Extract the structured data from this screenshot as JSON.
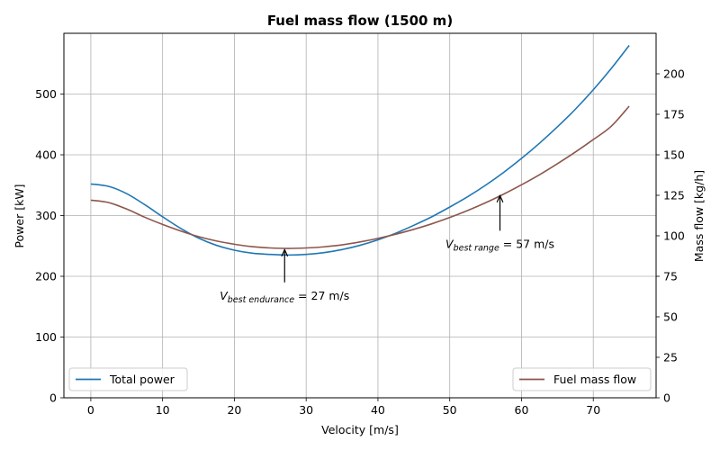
{
  "chart_data": {
    "type": "line",
    "title": "Fuel mass flow (1500 m)",
    "xlabel": "Velocity [m/s]",
    "ylabel_left": "Power [kW]",
    "ylabel_right": "Mass flow [kg/h]",
    "xlim": [
      -3.75,
      78.75
    ],
    "ylim_left": [
      0,
      600
    ],
    "ylim_right": [
      0,
      225
    ],
    "x_ticks": [
      0,
      10,
      20,
      30,
      40,
      50,
      60,
      70
    ],
    "y_ticks_left": [
      0,
      100,
      200,
      300,
      400,
      500
    ],
    "y_ticks_right": [
      0,
      25,
      50,
      75,
      100,
      125,
      150,
      175,
      200
    ],
    "grid": true,
    "series": [
      {
        "name": "Total power",
        "axis": "left",
        "color": "#1f77b4",
        "x": [
          0,
          2.5,
          5,
          7.5,
          10,
          12.5,
          15,
          17.5,
          20,
          22.5,
          25,
          27.5,
          30,
          32.5,
          35,
          37.5,
          40,
          42.5,
          45,
          47.5,
          50,
          52.5,
          55,
          57.5,
          60,
          62.5,
          65,
          67.5,
          70,
          72.5,
          75
        ],
        "values": [
          352,
          348,
          336,
          318,
          298,
          279,
          263,
          251,
          243,
          238,
          236,
          235,
          236,
          239,
          244,
          251,
          260,
          271,
          284,
          298,
          314,
          331,
          350,
          371,
          394,
          419,
          446,
          475,
          507,
          542,
          580
        ]
      },
      {
        "name": "Fuel mass flow",
        "axis": "right",
        "color": "#8c564b",
        "x": [
          0,
          2.5,
          5,
          7.5,
          10,
          12.5,
          15,
          17.5,
          20,
          22.5,
          25,
          27.5,
          30,
          32.5,
          35,
          37.5,
          40,
          42.5,
          45,
          47.5,
          50,
          52.5,
          55,
          57.5,
          60,
          62.5,
          65,
          67.5,
          70,
          72.5,
          75
        ],
        "values": [
          122,
          120.5,
          116.5,
          111.5,
          107,
          103,
          99.5,
          96.8,
          94.8,
          93.3,
          92.5,
          92.2,
          92.5,
          93.2,
          94.4,
          96.2,
          98.4,
          101,
          104,
          107.4,
          111.3,
          115.6,
          120.4,
          125.7,
          131.5,
          137.7,
          144.5,
          151.7,
          159.4,
          167.6,
          180
        ]
      }
    ],
    "legends": [
      {
        "placement": "lower-left",
        "entries": [
          "Total power"
        ]
      },
      {
        "placement": "lower-right",
        "entries": [
          "Fuel mass flow"
        ]
      }
    ],
    "annotations": [
      {
        "label_sub": "best endurance",
        "label_value": " = 27 m/s",
        "x": 27,
        "y_from": 190,
        "y_to": 244,
        "axis": "left"
      },
      {
        "label_sub": "best range",
        "label_value": " = 57 m/s",
        "x": 57,
        "y_from": 275,
        "y_to": 333,
        "axis": "left"
      }
    ]
  }
}
